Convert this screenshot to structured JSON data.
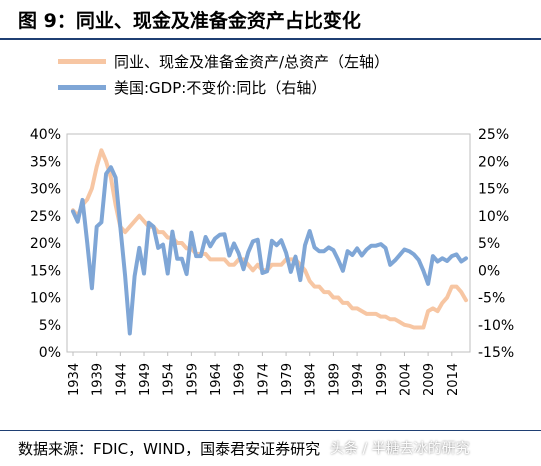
{
  "header": {
    "title": "图 9：同业、现金及准备金资产占比变化"
  },
  "footer": {
    "source": "数据来源：FDIC，WIND，国泰君安证券研究",
    "watermark": "头条 / 半糖去冰的研究"
  },
  "colors": {
    "left_series": "#f7c6a3",
    "right_series": "#7fa6d6",
    "rule": "#1f3f73"
  },
  "chart_data": {
    "type": "line",
    "xticks": [
      "1934",
      "1939",
      "1944",
      "1949",
      "1954",
      "1959",
      "1964",
      "1969",
      "1974",
      "1979",
      "1984",
      "1989",
      "1994",
      "1999",
      "2004",
      "2009",
      "2014"
    ],
    "left_axis": {
      "ticks": [
        "0%",
        "5%",
        "10%",
        "15%",
        "20%",
        "25%",
        "30%",
        "35%",
        "40%"
      ],
      "ylim": [
        0,
        40
      ]
    },
    "right_axis": {
      "ticks": [
        "-15%",
        "-10%",
        "-5%",
        "0%",
        "5%",
        "10%",
        "15%",
        "20%",
        "25%"
      ],
      "ylim": [
        -15,
        25
      ]
    },
    "series": [
      {
        "name": "同业、现金及准备金资产/总资产（左轴）",
        "axis": "left",
        "color": "#f7c6a3",
        "x": [
          1934,
          1935,
          1936,
          1937,
          1938,
          1939,
          1940,
          1941,
          1942,
          1943,
          1944,
          1945,
          1946,
          1947,
          1948,
          1949,
          1950,
          1951,
          1952,
          1953,
          1954,
          1955,
          1956,
          1957,
          1958,
          1959,
          1960,
          1961,
          1962,
          1963,
          1964,
          1965,
          1966,
          1967,
          1968,
          1969,
          1970,
          1971,
          1972,
          1973,
          1974,
          1975,
          1976,
          1977,
          1978,
          1979,
          1980,
          1981,
          1982,
          1983,
          1984,
          1985,
          1986,
          1987,
          1988,
          1989,
          1990,
          1991,
          1992,
          1993,
          1994,
          1995,
          1996,
          1997,
          1998,
          1999,
          2000,
          2001,
          2002,
          2003,
          2004,
          2005,
          2006,
          2007,
          2008,
          2009,
          2010,
          2011,
          2012,
          2013,
          2014,
          2015,
          2016,
          2017
        ],
        "values": [
          26,
          25,
          27,
          28,
          30,
          34,
          37,
          35,
          32,
          27,
          23,
          22,
          23,
          24,
          25,
          24,
          23,
          23,
          22,
          22,
          21,
          21,
          20,
          20,
          19,
          19,
          18,
          18,
          18,
          17,
          17,
          17,
          17,
          16,
          16,
          17,
          17,
          16,
          15,
          16,
          15,
          15,
          16,
          16,
          16,
          17,
          17,
          17,
          16,
          15,
          13,
          12,
          12,
          11,
          11,
          10,
          10,
          9,
          9,
          8,
          8,
          7.5,
          7,
          7,
          7,
          6.5,
          6.5,
          6,
          6,
          5.5,
          5,
          4.8,
          4.5,
          4.5,
          4.5,
          7.5,
          8,
          7.5,
          9,
          10,
          12,
          12,
          11,
          9.5
        ]
      },
      {
        "name": "美国:GDP:不变价:同比（右轴）",
        "axis": "right",
        "color": "#7fa6d6",
        "x": [
          1934,
          1935,
          1936,
          1937,
          1938,
          1939,
          1940,
          1941,
          1942,
          1943,
          1944,
          1945,
          1946,
          1947,
          1948,
          1949,
          1950,
          1951,
          1952,
          1953,
          1954,
          1955,
          1956,
          1957,
          1958,
          1959,
          1960,
          1961,
          1962,
          1963,
          1964,
          1965,
          1966,
          1967,
          1968,
          1969,
          1970,
          1971,
          1972,
          1973,
          1974,
          1975,
          1976,
          1977,
          1978,
          1979,
          1980,
          1981,
          1982,
          1983,
          1984,
          1985,
          1986,
          1987,
          1988,
          1989,
          1990,
          1991,
          1992,
          1993,
          1994,
          1995,
          1996,
          1997,
          1998,
          1999,
          2000,
          2001,
          2002,
          2003,
          2004,
          2005,
          2006,
          2007,
          2008,
          2009,
          2010,
          2011,
          2012,
          2013,
          2014,
          2015,
          2016,
          2017
        ],
        "values": [
          10.8,
          8.9,
          12.9,
          5.1,
          -3.3,
          8.0,
          8.8,
          17.7,
          18.9,
          17.0,
          8.0,
          -1.0,
          -11.6,
          -1.1,
          4.1,
          -0.6,
          8.7,
          8.0,
          4.1,
          4.7,
          -0.6,
          7.1,
          2.1,
          2.1,
          -0.7,
          6.9,
          2.6,
          2.6,
          6.1,
          4.4,
          5.8,
          6.5,
          6.6,
          2.7,
          4.9,
          3.1,
          0.2,
          3.3,
          5.3,
          5.6,
          -0.5,
          -0.2,
          5.4,
          4.6,
          5.5,
          3.2,
          -0.3,
          2.5,
          -1.8,
          4.6,
          7.2,
          4.2,
          3.5,
          3.5,
          4.2,
          3.7,
          1.9,
          -0.1,
          3.5,
          2.8,
          4.0,
          2.7,
          3.8,
          4.5,
          4.5,
          4.8,
          4.1,
          1.0,
          1.8,
          2.8,
          3.8,
          3.5,
          2.9,
          1.9,
          -0.1,
          -2.5,
          2.6,
          1.6,
          2.2,
          1.7,
          2.6,
          2.9,
          1.6,
          2.2
        ]
      }
    ]
  }
}
